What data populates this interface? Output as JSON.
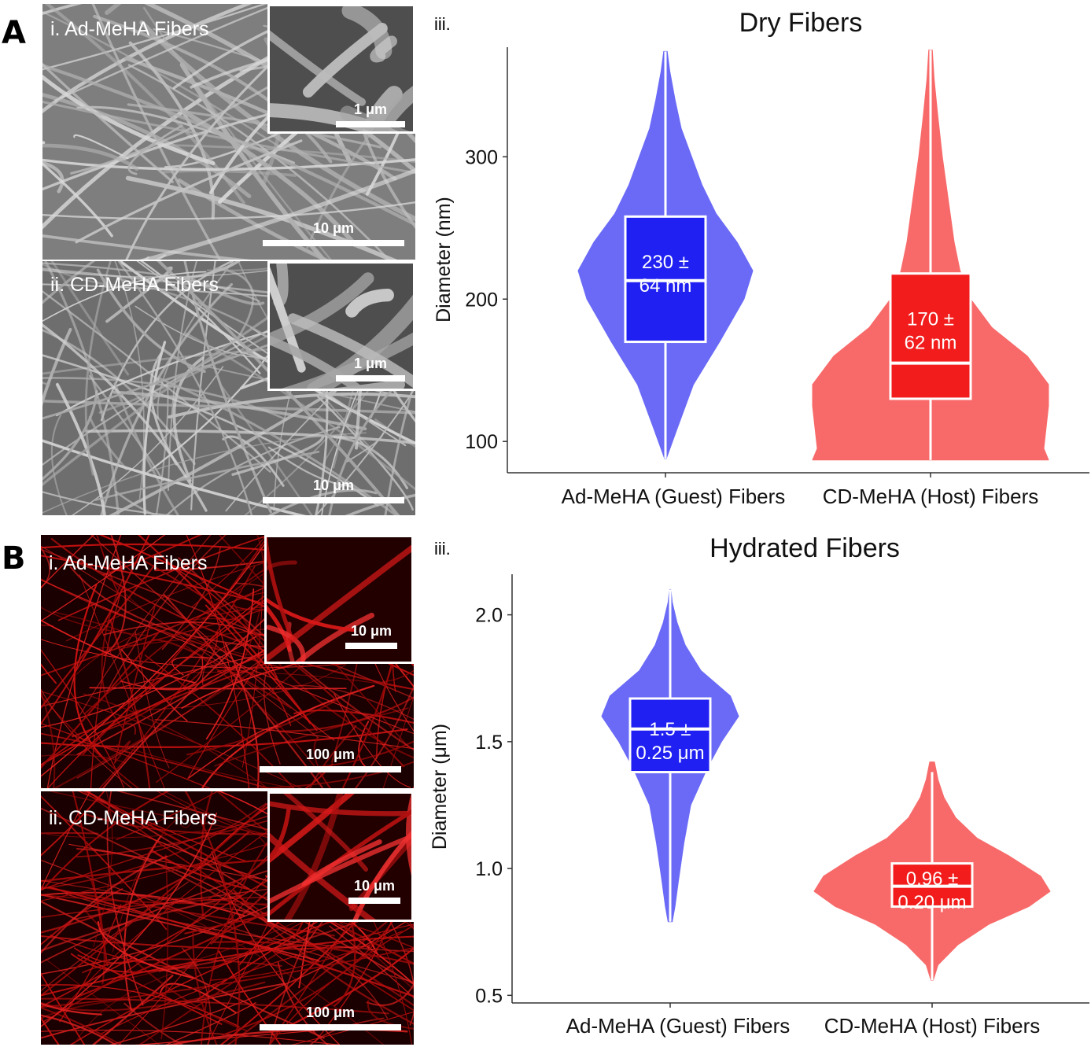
{
  "panels": {
    "A": {
      "letter": "A",
      "i_label": "i. Ad-MeHA Fibers",
      "ii_label": "ii. CD-MeHA Fibers",
      "iii_label": "iii.",
      "scale_main": "10 μm",
      "scale_inset": "1 μm",
      "tone": "#9a9a9a"
    },
    "B": {
      "letter": "B",
      "i_label": "i. Ad-MeHA Fibers",
      "ii_label": "ii. CD-MeHA Fibers",
      "iii_label": "iii.",
      "scale_main": "100 μm",
      "scale_inset": "10 μm",
      "tone": "#cc1010"
    }
  },
  "chart_data": [
    {
      "type": "violin",
      "title": "Dry Fibers",
      "ylabel": "Diameter (nm)",
      "ylim": [
        78,
        377
      ],
      "yticks": [
        100,
        200,
        300
      ],
      "yticklabels": [
        "100",
        "200",
        "300"
      ],
      "categories": [
        "Ad-MeHA (Guest) Fibers",
        "CD-MeHA (Host) Fibers"
      ],
      "series": [
        {
          "color": "#6a6af7",
          "box_color": "#2020f2",
          "box": {
            "q1": 170,
            "median": 213,
            "q3": 258
          },
          "whisker": [
            88,
            374
          ],
          "label": [
            "230 ±",
            "64 nm"
          ],
          "density": [
            [
              88,
              0.01
            ],
            [
              110,
              0.14
            ],
            [
              140,
              0.32
            ],
            [
              170,
              0.62
            ],
            [
              200,
              0.9
            ],
            [
              220,
              1.0
            ],
            [
              240,
              0.82
            ],
            [
              260,
              0.58
            ],
            [
              280,
              0.42
            ],
            [
              300,
              0.3
            ],
            [
              320,
              0.18
            ],
            [
              340,
              0.11
            ],
            [
              360,
              0.05
            ],
            [
              374,
              0.02
            ]
          ]
        },
        {
          "color": "#f86a6a",
          "box_color": "#f21c1c",
          "box": {
            "q1": 130,
            "median": 155,
            "q3": 218
          },
          "whisker": [
            87,
            375
          ],
          "label": [
            "170 ±",
            "62 nm"
          ],
          "density": [
            [
              87,
              1.0
            ],
            [
              95,
              0.96
            ],
            [
              110,
              0.98
            ],
            [
              125,
              1.0
            ],
            [
              140,
              1.0
            ],
            [
              160,
              0.82
            ],
            [
              180,
              0.52
            ],
            [
              200,
              0.34
            ],
            [
              220,
              0.25
            ],
            [
              240,
              0.2
            ],
            [
              270,
              0.15
            ],
            [
              300,
              0.1
            ],
            [
              330,
              0.06
            ],
            [
              355,
              0.03
            ],
            [
              375,
              0.015
            ]
          ]
        }
      ]
    },
    {
      "type": "violin",
      "title": "Hydrated Fibers",
      "ylabel": "Diameter (μm)",
      "ylim": [
        0.47,
        2.16
      ],
      "yticks": [
        0.5,
        1.0,
        1.5,
        2.0
      ],
      "yticklabels": [
        "0.5",
        "1.0",
        "1.5",
        "2.0"
      ],
      "categories": [
        "Ad-MeHA (Guest) Fibers",
        "CD-MeHA (Host) Fibers"
      ],
      "series": [
        {
          "color": "#6a6af7",
          "box_color": "#2020f2",
          "box": {
            "q1": 1.38,
            "median": 1.55,
            "q3": 1.67
          },
          "whisker": [
            0.79,
            2.1
          ],
          "label": [
            "1.5 ±",
            "0.25 μm"
          ],
          "density": [
            [
              0.79,
              0.03
            ],
            [
              0.85,
              0.07
            ],
            [
              0.95,
              0.12
            ],
            [
              1.1,
              0.2
            ],
            [
              1.25,
              0.3
            ],
            [
              1.4,
              0.55
            ],
            [
              1.5,
              0.75
            ],
            [
              1.6,
              1.0
            ],
            [
              1.68,
              0.88
            ],
            [
              1.78,
              0.45
            ],
            [
              1.88,
              0.22
            ],
            [
              1.97,
              0.1
            ],
            [
              2.05,
              0.03
            ],
            [
              2.1,
              0.01
            ]
          ]
        },
        {
          "color": "#f86a6a",
          "box_color": "#f21c1c",
          "box": {
            "q1": 0.85,
            "median": 0.93,
            "q3": 1.02
          },
          "whisker": [
            0.56,
            1.38
          ],
          "label": [
            "0.96 ±",
            "0.20 μm"
          ],
          "density": [
            [
              0.56,
              0.01
            ],
            [
              0.62,
              0.05
            ],
            [
              0.7,
              0.22
            ],
            [
              0.78,
              0.48
            ],
            [
              0.85,
              0.82
            ],
            [
              0.91,
              1.0
            ],
            [
              0.97,
              0.92
            ],
            [
              1.05,
              0.65
            ],
            [
              1.12,
              0.38
            ],
            [
              1.2,
              0.2
            ],
            [
              1.28,
              0.1
            ],
            [
              1.35,
              0.05
            ],
            [
              1.42,
              0.02
            ]
          ]
        }
      ]
    }
  ]
}
